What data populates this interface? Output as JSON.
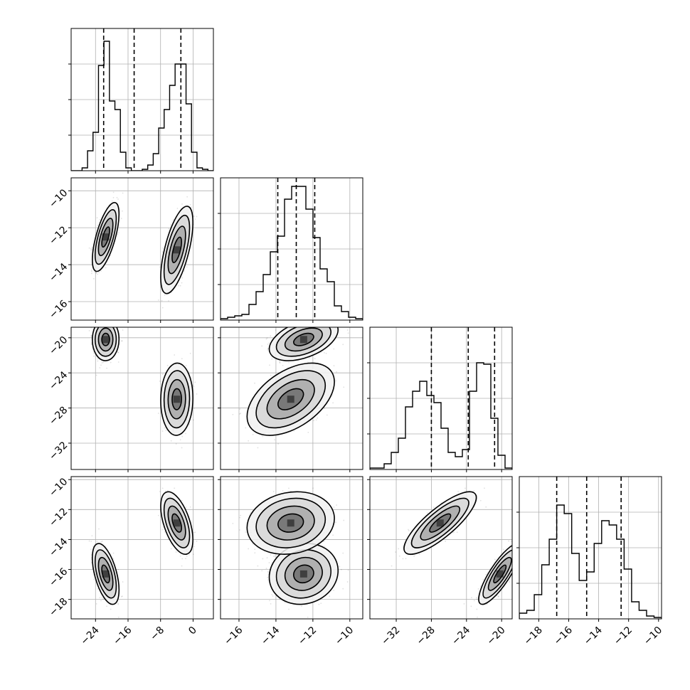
{
  "chart_data": {
    "type": "corner",
    "grid": true,
    "colors": {
      "axes": "#000000",
      "grid": "#b0b0b0",
      "scatter": "#000000",
      "contour": "#000000",
      "quantile_line": "#000000"
    },
    "params": [
      {
        "range": [
          -30,
          5
        ],
        "ticks": [
          -24,
          -16,
          -8,
          0
        ],
        "tick_labels": [
          "−24",
          "−16",
          "−8",
          "0"
        ],
        "quantiles": [
          -22.0,
          -14.5,
          -3.0
        ]
      },
      {
        "range": [
          -17,
          -9.3
        ],
        "ticks": [
          -16,
          -14,
          -12,
          -10
        ],
        "tick_labels": [
          "−16",
          "−14",
          "−12",
          "−10"
        ],
        "quantiles": [
          -13.9,
          -12.9,
          -11.9
        ]
      },
      {
        "range": [
          -35,
          -18.8
        ],
        "ticks": [
          -32,
          -28,
          -24,
          -20
        ],
        "tick_labels": [
          "−32",
          "−28",
          "−24",
          "−20"
        ],
        "quantiles": [
          -28.0,
          -23.8,
          -20.8
        ]
      },
      {
        "range": [
          -19.3,
          -9.8
        ],
        "ticks": [
          -18,
          -16,
          -14,
          -12,
          -10
        ],
        "tick_labels": [
          "−18",
          "−16",
          "−14",
          "−12",
          "−10"
        ],
        "quantiles": [
          -16.8,
          -14.8,
          -12.5
        ]
      }
    ],
    "modes": [
      {
        "weight": 0.5,
        "mean": [
          -21.5,
          -12.5,
          -20.2,
          -16.3
        ],
        "sd": [
          1.4,
          0.8,
          0.95,
          0.85
        ]
      },
      {
        "weight": 0.5,
        "mean": [
          -4.0,
          -13.2,
          -27.0,
          -12.9
        ],
        "sd": [
          1.7,
          1.0,
          1.7,
          0.9
        ]
      }
    ],
    "hist": [
      [
        0,
        0,
        0.02,
        0.14,
        0.27,
        0.74,
        0.91,
        0.49,
        0.43,
        0.13,
        0.02,
        0,
        0,
        0.01,
        0.04,
        0.12,
        0.3,
        0.43,
        0.6,
        0.75,
        0.75,
        0.47,
        0.13,
        0.02,
        0.01,
        0
      ],
      [
        0.01,
        0.02,
        0.03,
        0.04,
        0.11,
        0.2,
        0.32,
        0.48,
        0.59,
        0.85,
        0.94,
        0.94,
        0.78,
        0.58,
        0.36,
        0.27,
        0.1,
        0.06,
        0.02,
        0.01
      ],
      [
        0.01,
        0.01,
        0.04,
        0.12,
        0.22,
        0.44,
        0.55,
        0.62,
        0.52,
        0.47,
        0.29,
        0.12,
        0.09,
        0.14,
        0.55,
        0.75,
        0.74,
        0.36,
        0.1,
        0.01
      ],
      [
        0.04,
        0.06,
        0.17,
        0.38,
        0.56,
        0.8,
        0.74,
        0.46,
        0.27,
        0.33,
        0.53,
        0.69,
        0.66,
        0.56,
        0.35,
        0.12,
        0.06,
        0.02,
        0.01
      ]
    ]
  }
}
